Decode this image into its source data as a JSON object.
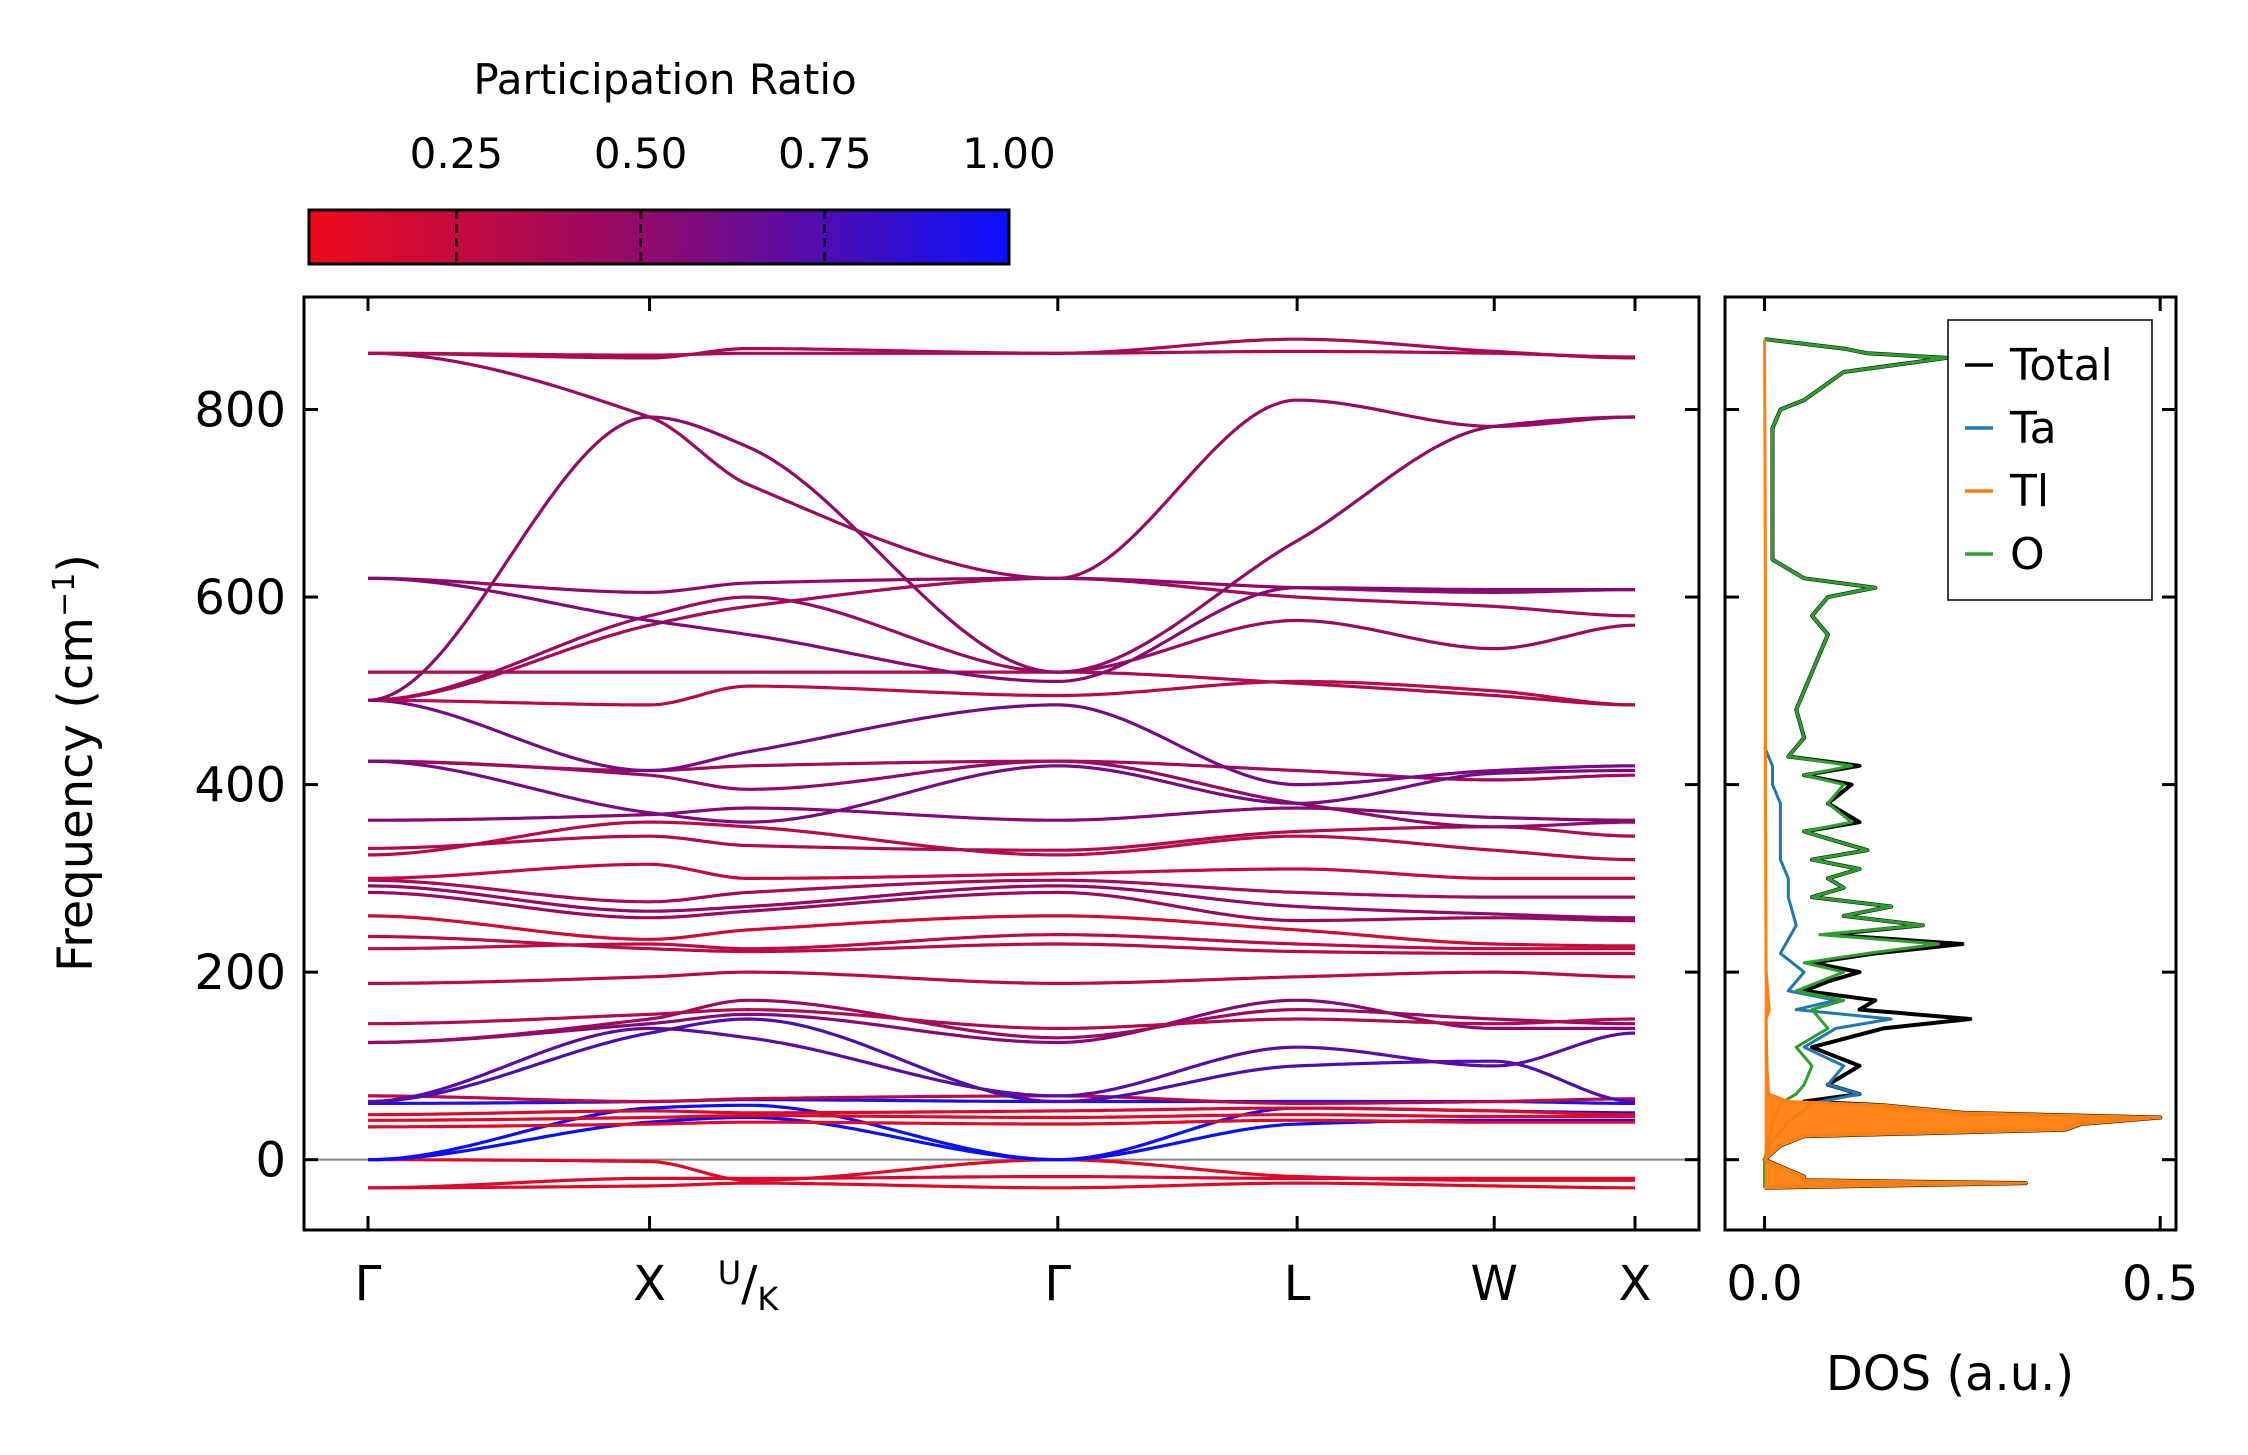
{
  "colorbar": {
    "title": "Participation Ratio",
    "ticks": [
      0.25,
      0.5,
      0.75,
      1.0
    ],
    "tick_labels": [
      "0.25",
      "0.50",
      "0.75",
      "1.00"
    ],
    "range": [
      0.05,
      1.0
    ],
    "color_low": "#ee0a1c",
    "color_mid": "#8c0a6e",
    "color_high": "#0a10ff"
  },
  "chart_data": [
    {
      "type": "line",
      "name": "phonon-band-structure",
      "title": "",
      "xlabel": "",
      "ylabel": "Frequency (cm⁻¹)",
      "ylabel_main": "Frequency (cm",
      "ylabel_sup": "−1",
      "ylabel_close": ")",
      "ylim": [
        -75,
        920
      ],
      "yticks": [
        0,
        200,
        400,
        600,
        800
      ],
      "ytick_labels": [
        "0",
        "200",
        "400",
        "600",
        "800"
      ],
      "x_points": [
        0,
        1,
        1.35,
        2.45,
        3.3,
        4.0,
        4.5
      ],
      "kpath_labels": [
        "Γ",
        "X",
        "U/K",
        "Γ",
        "L",
        "W",
        "X"
      ],
      "kpath_label_u": "U",
      "kpath_label_slash": "/",
      "kpath_label_k": "K",
      "zero_line": 0,
      "series": [
        {
          "name": "branch-1",
          "values": [
            -30,
            -28,
            -25,
            -30,
            -25,
            -28,
            -30
          ],
          "pr": 0.12
        },
        {
          "name": "branch-2",
          "values": [
            -30,
            -20,
            -20,
            -18,
            -20,
            -20,
            -20
          ],
          "pr": 0.15
        },
        {
          "name": "branch-3",
          "values": [
            0,
            -2,
            -22,
            0,
            -18,
            -22,
            -22
          ],
          "pr": 0.12
        },
        {
          "name": "branch-4",
          "values": [
            0,
            55,
            58,
            0,
            55,
            52,
            50
          ],
          "pr": 1.0
        },
        {
          "name": "branch-5",
          "values": [
            0,
            40,
            45,
            0,
            38,
            42,
            42
          ],
          "pr": 1.0
        },
        {
          "name": "branch-6",
          "values": [
            35,
            38,
            40,
            38,
            42,
            40,
            40
          ],
          "pr": 0.12
        },
        {
          "name": "branch-7",
          "values": [
            42,
            45,
            47,
            45,
            48,
            46,
            46
          ],
          "pr": 0.12
        },
        {
          "name": "branch-8",
          "values": [
            48,
            52,
            50,
            52,
            55,
            52,
            48
          ],
          "pr": 0.15
        },
        {
          "name": "branch-9",
          "values": [
            60,
            62,
            64,
            62,
            62,
            62,
            60
          ],
          "pr": 0.92
        },
        {
          "name": "branch-10",
          "values": [
            68,
            62,
            65,
            68,
            60,
            62,
            65
          ],
          "pr": 0.3
        },
        {
          "name": "branch-11",
          "values": [
            62,
            135,
            150,
            62,
            100,
            105,
            62
          ],
          "pr": 0.75
        },
        {
          "name": "branch-12",
          "values": [
            62,
            140,
            130,
            68,
            120,
            100,
            135
          ],
          "pr": 0.7
        },
        {
          "name": "branch-13",
          "values": [
            125,
            145,
            155,
            125,
            170,
            140,
            140
          ],
          "pr": 0.55
        },
        {
          "name": "branch-14",
          "values": [
            125,
            150,
            170,
            130,
            160,
            150,
            145
          ],
          "pr": 0.45
        },
        {
          "name": "branch-15",
          "values": [
            145,
            155,
            160,
            140,
            150,
            145,
            150
          ],
          "pr": 0.35
        },
        {
          "name": "branch-16",
          "values": [
            188,
            195,
            200,
            188,
            195,
            200,
            195
          ],
          "pr": 0.3
        },
        {
          "name": "branch-17",
          "values": [
            225,
            230,
            225,
            240,
            230,
            225,
            225
          ],
          "pr": 0.28
        },
        {
          "name": "branch-18",
          "values": [
            238,
            225,
            222,
            230,
            222,
            220,
            220
          ],
          "pr": 0.3
        },
        {
          "name": "branch-19",
          "values": [
            260,
            235,
            245,
            260,
            245,
            230,
            228
          ],
          "pr": 0.2
        },
        {
          "name": "branch-20",
          "values": [
            285,
            258,
            265,
            285,
            255,
            258,
            255
          ],
          "pr": 0.45
        },
        {
          "name": "branch-21",
          "values": [
            292,
            265,
            270,
            292,
            270,
            262,
            258
          ],
          "pr": 0.5
        },
        {
          "name": "branch-22",
          "values": [
            298,
            275,
            285,
            298,
            285,
            280,
            280
          ],
          "pr": 0.4
        },
        {
          "name": "branch-23",
          "values": [
            300,
            315,
            300,
            305,
            310,
            300,
            300
          ],
          "pr": 0.25
        },
        {
          "name": "branch-24",
          "values": [
            325,
            360,
            355,
            325,
            345,
            330,
            320
          ],
          "pr": 0.3
        },
        {
          "name": "branch-25",
          "values": [
            332,
            345,
            335,
            330,
            350,
            355,
            345
          ],
          "pr": 0.35
        },
        {
          "name": "branch-26",
          "values": [
            362,
            368,
            375,
            362,
            375,
            365,
            362
          ],
          "pr": 0.55
        },
        {
          "name": "branch-27",
          "values": [
            425,
            410,
            395,
            425,
            380,
            355,
            360
          ],
          "pr": 0.5
        },
        {
          "name": "branch-28",
          "values": [
            425,
            415,
            420,
            425,
            415,
            405,
            410
          ],
          "pr": 0.42
        },
        {
          "name": "branch-29",
          "values": [
            425,
            370,
            360,
            420,
            380,
            412,
            415
          ],
          "pr": 0.6
        },
        {
          "name": "branch-30",
          "values": [
            490,
            415,
            435,
            485,
            400,
            415,
            420
          ],
          "pr": 0.6
        },
        {
          "name": "branch-31",
          "values": [
            490,
            485,
            505,
            495,
            510,
            500,
            485
          ],
          "pr": 0.3
        },
        {
          "name": "branch-32",
          "values": [
            520,
            520,
            520,
            520,
            508,
            495,
            485
          ],
          "pr": 0.35
        },
        {
          "name": "branch-33",
          "values": [
            490,
            580,
            600,
            520,
            575,
            545,
            570
          ],
          "pr": 0.45
        },
        {
          "name": "branch-34",
          "values": [
            490,
            570,
            590,
            620,
            600,
            590,
            580
          ],
          "pr": 0.4
        },
        {
          "name": "branch-35",
          "values": [
            620,
            605,
            615,
            620,
            610,
            605,
            608
          ],
          "pr": 0.5
        },
        {
          "name": "branch-36",
          "values": [
            620,
            575,
            560,
            510,
            610,
            608,
            608
          ],
          "pr": 0.55
        },
        {
          "name": "branch-37",
          "values": [
            490,
            792,
            760,
            520,
            660,
            782,
            792
          ],
          "pr": 0.5
        },
        {
          "name": "branch-38",
          "values": [
            860,
            792,
            720,
            620,
            810,
            782,
            792
          ],
          "pr": 0.45
        },
        {
          "name": "branch-39",
          "values": [
            860,
            855,
            865,
            860,
            875,
            862,
            855
          ],
          "pr": 0.4
        },
        {
          "name": "branch-40",
          "values": [
            860,
            858,
            860,
            860,
            862,
            860,
            856
          ],
          "pr": 0.35
        }
      ]
    },
    {
      "type": "line",
      "name": "phonon-dos",
      "title": "",
      "xlabel": "DOS (a.u.)",
      "ylabel": "",
      "xlim": [
        -0.05,
        0.52
      ],
      "xticks": [
        0.0,
        0.5
      ],
      "xtick_labels": [
        "0.0",
        "0.5"
      ],
      "ylim": [
        -75,
        920
      ],
      "legend_position": "top-right",
      "legend": [
        "Total",
        "Ta",
        "Tl",
        "O"
      ],
      "series": [
        {
          "name": "Total",
          "color": "#000000",
          "freq": [
            -30,
            -25,
            -22,
            -18,
            0,
            15,
            25,
            32,
            38,
            45,
            50,
            58,
            62,
            70,
            80,
            100,
            120,
            140,
            150,
            160,
            170,
            180,
            190,
            200,
            210,
            220,
            230,
            240,
            250,
            260,
            270,
            280,
            290,
            300,
            310,
            320,
            330,
            340,
            350,
            360,
            380,
            400,
            410,
            420,
            430,
            450,
            480,
            500,
            520,
            560,
            580,
            600,
            610,
            620,
            640,
            700,
            780,
            800,
            810,
            840,
            855,
            860,
            865,
            875
          ],
          "values": [
            0,
            0.33,
            0.05,
            0.05,
            0,
            0.02,
            0.05,
            0.38,
            0.4,
            0.5,
            0.25,
            0.15,
            0.05,
            0.12,
            0.08,
            0.12,
            0.06,
            0.15,
            0.26,
            0.12,
            0.14,
            0.05,
            0.08,
            0.12,
            0.06,
            0.14,
            0.25,
            0.08,
            0.2,
            0.1,
            0.16,
            0.06,
            0.1,
            0.08,
            0.12,
            0.06,
            0.13,
            0.09,
            0.05,
            0.12,
            0.08,
            0.11,
            0.05,
            0.12,
            0.03,
            0.05,
            0.04,
            0.05,
            0.06,
            0.08,
            0.06,
            0.08,
            0.14,
            0.05,
            0.01,
            0.01,
            0.01,
            0.02,
            0.05,
            0.1,
            0.23,
            0.13,
            0.1,
            0.0
          ]
        },
        {
          "name": "Ta",
          "color": "#1f77b4",
          "freq": [
            -30,
            0,
            20,
            40,
            60,
            70,
            80,
            100,
            120,
            140,
            150,
            160,
            170,
            180,
            200,
            220,
            250,
            280,
            300,
            320,
            340,
            360,
            380,
            400,
            420,
            430,
            440
          ],
          "values": [
            0,
            0,
            0.01,
            0.03,
            0.06,
            0.12,
            0.08,
            0.1,
            0.05,
            0.09,
            0.16,
            0.04,
            0.09,
            0.03,
            0.05,
            0.02,
            0.04,
            0.03,
            0.03,
            0.02,
            0.02,
            0.02,
            0.02,
            0.01,
            0.01,
            0.005,
            0
          ]
        },
        {
          "name": "Tl",
          "color": "#ff7f0e",
          "freq": [
            -30,
            -25,
            -22,
            -18,
            0,
            15,
            25,
            32,
            38,
            45,
            50,
            58,
            62,
            70,
            100,
            150,
            160,
            200,
            400,
            600,
            875
          ],
          "values": [
            0,
            0.33,
            0.05,
            0.05,
            0,
            0.02,
            0.05,
            0.38,
            0.4,
            0.5,
            0.25,
            0.15,
            0.03,
            0.005,
            0.003,
            0.002,
            0.006,
            0.002,
            0.001,
            0.001,
            0
          ]
        },
        {
          "name": "O",
          "color": "#2ca02c",
          "freq": [
            -30,
            0,
            40,
            60,
            70,
            80,
            100,
            120,
            140,
            160,
            170,
            180,
            190,
            200,
            210,
            220,
            230,
            240,
            250,
            260,
            270,
            280,
            290,
            300,
            310,
            320,
            330,
            340,
            350,
            360,
            380,
            400,
            410,
            420,
            430,
            450,
            480,
            500,
            520,
            560,
            580,
            600,
            610,
            620,
            640,
            700,
            780,
            800,
            810,
            840,
            855,
            860,
            865,
            875
          ],
          "values": [
            0,
            0,
            0.01,
            0.02,
            0.04,
            0.05,
            0.06,
            0.04,
            0.08,
            0.06,
            0.1,
            0.04,
            0.07,
            0.1,
            0.05,
            0.13,
            0.22,
            0.07,
            0.2,
            0.1,
            0.16,
            0.06,
            0.1,
            0.08,
            0.12,
            0.06,
            0.13,
            0.09,
            0.05,
            0.11,
            0.08,
            0.1,
            0.05,
            0.11,
            0.03,
            0.05,
            0.04,
            0.05,
            0.06,
            0.08,
            0.06,
            0.08,
            0.14,
            0.05,
            0.01,
            0.01,
            0.01,
            0.02,
            0.05,
            0.1,
            0.23,
            0.13,
            0.1,
            0.0
          ]
        }
      ]
    }
  ]
}
